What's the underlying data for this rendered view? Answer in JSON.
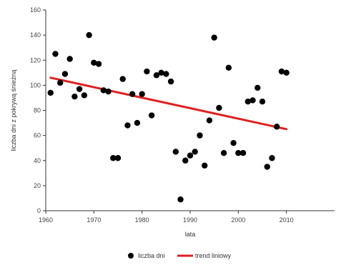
{
  "chart_data": {
    "type": "scatter",
    "xlabel": "lata",
    "ylabel": "liczba dni z pokrywą śnieżną",
    "xlim": [
      1960,
      2020
    ],
    "ylim": [
      0,
      160
    ],
    "x_ticks": [
      "1960",
      "1970",
      "1980",
      "1990",
      "2000",
      "2010"
    ],
    "y_ticks": [
      "0",
      "20",
      "40",
      "60",
      "80",
      "100",
      "120",
      "140",
      "160"
    ],
    "grid": false,
    "legend_position": "bottom",
    "series": [
      {
        "name": "liczba dni",
        "kind": "points",
        "color": "#000000",
        "x": [
          1961,
          1962,
          1963,
          1964,
          1965,
          1966,
          1967,
          1968,
          1969,
          1970,
          1971,
          1972,
          1973,
          1974,
          1975,
          1976,
          1977,
          1978,
          1979,
          1980,
          1981,
          1982,
          1983,
          1984,
          1985,
          1986,
          1987,
          1988,
          1989,
          1990,
          1991,
          1992,
          1993,
          1994,
          1995,
          1996,
          1997,
          1998,
          1999,
          2000,
          2001,
          2002,
          2003,
          2004,
          2005,
          2006,
          2007,
          2008,
          2009,
          2010
        ],
        "y": [
          94,
          125,
          102,
          109,
          121,
          91,
          97,
          92,
          140,
          118,
          117,
          96,
          95,
          42,
          42,
          105,
          68,
          93,
          70,
          93,
          111,
          76,
          108,
          110,
          109,
          103,
          47,
          9,
          40,
          44,
          47,
          60,
          36,
          72,
          138,
          82,
          46,
          114,
          54,
          46,
          46,
          87,
          88,
          98,
          87,
          35,
          42,
          67,
          111,
          110
        ]
      },
      {
        "name": "trend liniowy",
        "kind": "line",
        "color": "#e02020",
        "x": [
          1961,
          2010
        ],
        "y": [
          106,
          65
        ]
      }
    ]
  },
  "legend": [
    {
      "label": "liczba dni",
      "color": "#000000",
      "marker": "point"
    },
    {
      "label": "trend liniowy",
      "color": "#e02020",
      "marker": "line"
    }
  ]
}
